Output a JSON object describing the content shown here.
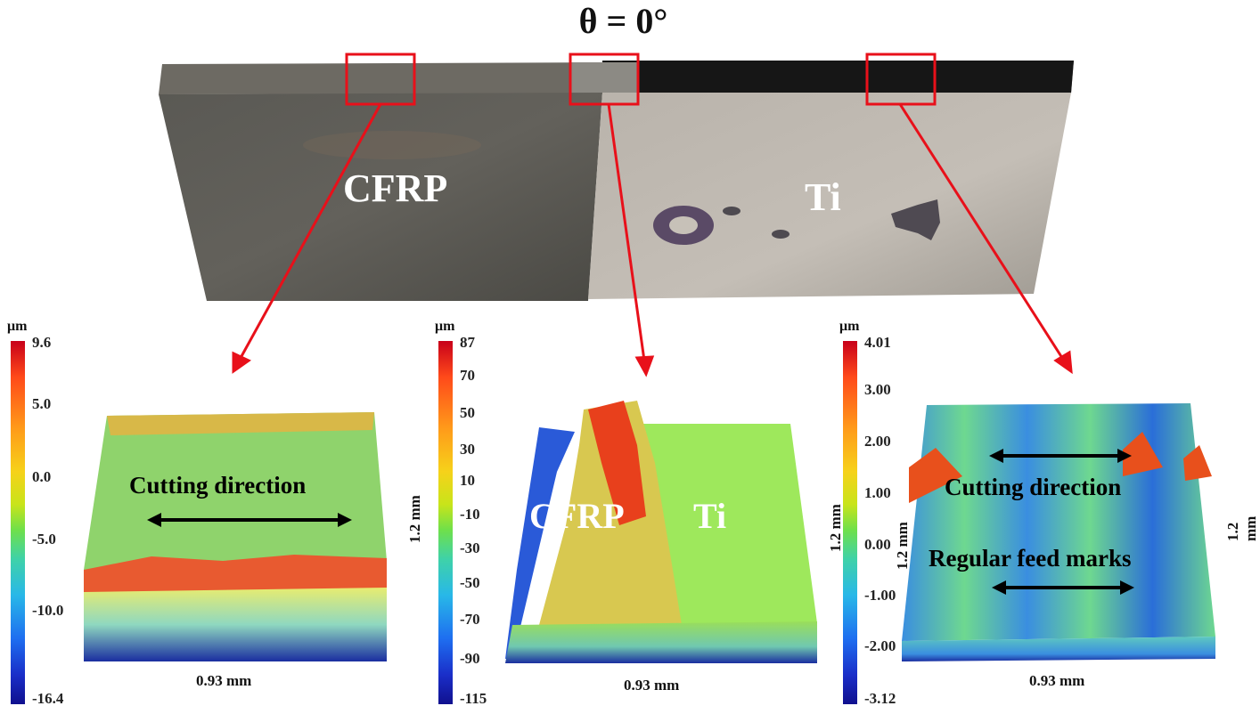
{
  "title": "θ = 0°",
  "photo": {
    "cfrp_label": "CFRP",
    "ti_label": "Ti",
    "colors": {
      "cfrp": "#5e5c57",
      "ti": "#b8b2aa",
      "highlight": "#e8101a"
    }
  },
  "panels": [
    {
      "unit": "μm",
      "ticks": [
        "9.6",
        "5.0",
        "0.0",
        "-5.0",
        "-10.0",
        "-16.4"
      ],
      "xdim": "0.93 mm",
      "ydim": "1.2 mm",
      "annotations": [
        "Cutting direction"
      ]
    },
    {
      "unit": "μm",
      "ticks": [
        "87",
        "70",
        "50",
        "30",
        "10",
        "-10",
        "-30",
        "-50",
        "-70",
        "-90",
        "-115"
      ],
      "xdim": "0.93 mm",
      "ydim": "1.2 mm",
      "labels": [
        "CFRP",
        "Ti"
      ]
    },
    {
      "unit": "μm",
      "ticks": [
        "4.01",
        "3.00",
        "2.00",
        "1.00",
        "0.00",
        "-1.00",
        "-2.00",
        "-3.12"
      ],
      "xdim": "0.93 mm",
      "ydim": "1.2 mm",
      "ydim_right": "1.2 mm",
      "annotations": [
        "Cutting direction",
        "Regular feed marks"
      ]
    }
  ]
}
